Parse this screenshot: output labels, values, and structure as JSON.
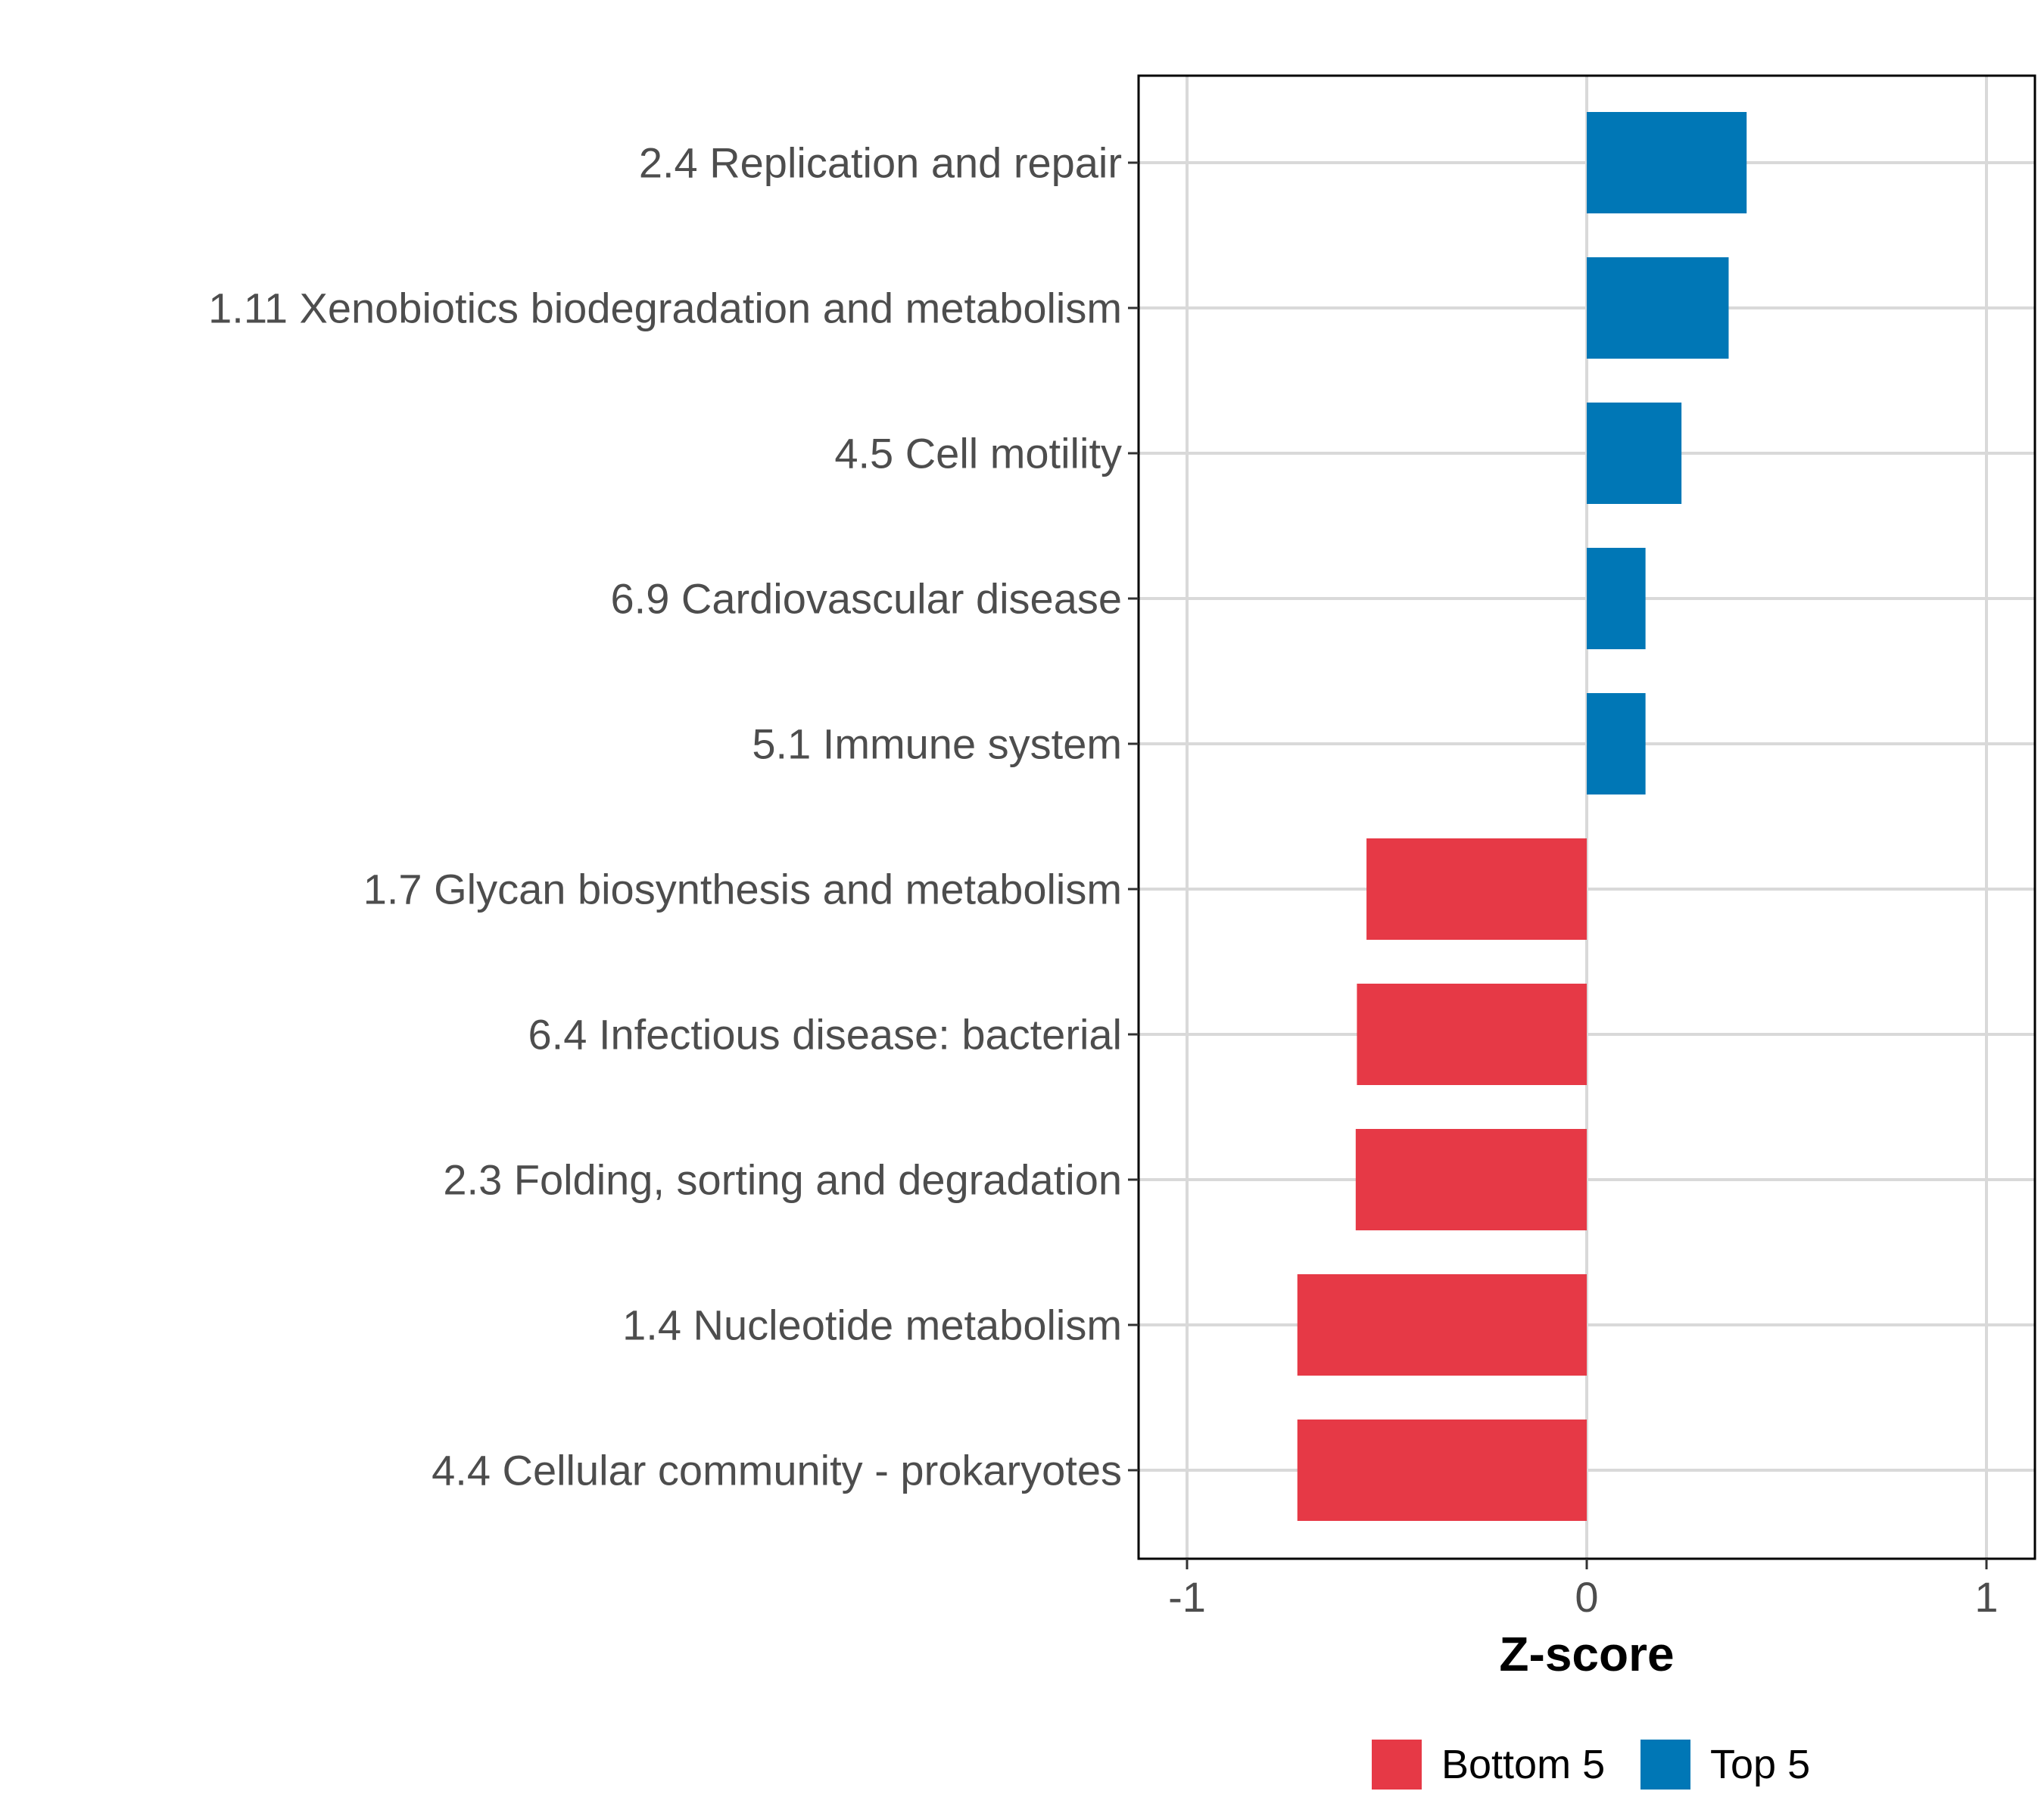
{
  "chart_data": {
    "type": "bar",
    "orientation": "horizontal",
    "title": "",
    "xlabel": "Z-score",
    "ylabel": "",
    "xlim": [
      -1.12,
      1.12
    ],
    "xticks": [
      -1,
      0,
      1
    ],
    "xtick_labels": [
      "-1",
      "0",
      "1"
    ],
    "grid": true,
    "legend_position": "bottom",
    "categories": [
      "2.4 Replication and repair",
      "1.11 Xenobiotics biodegradation and metabolism",
      "4.5 Cell motility",
      "6.9 Cardiovascular disease",
      "5.1 Immune system",
      "1.7 Glycan biosynthesis and metabolism",
      "6.4 Infectious disease: bacterial",
      "2.3 Folding, sorting and degradation",
      "1.4 Nucleotide metabolism",
      "4.4 Cellular community - prokaryotes"
    ],
    "values": [
      0.4,
      0.355,
      0.237,
      0.147,
      0.147,
      -0.551,
      -0.575,
      -0.578,
      -0.724,
      -0.724
    ],
    "groups": [
      "Top 5",
      "Top 5",
      "Top 5",
      "Top 5",
      "Top 5",
      "Bottom 5",
      "Bottom 5",
      "Bottom 5",
      "Bottom 5",
      "Bottom 5"
    ],
    "legend": [
      {
        "label": "Bottom 5",
        "color": "#E63946"
      },
      {
        "label": "Top 5",
        "color": "#0077B6"
      }
    ]
  }
}
